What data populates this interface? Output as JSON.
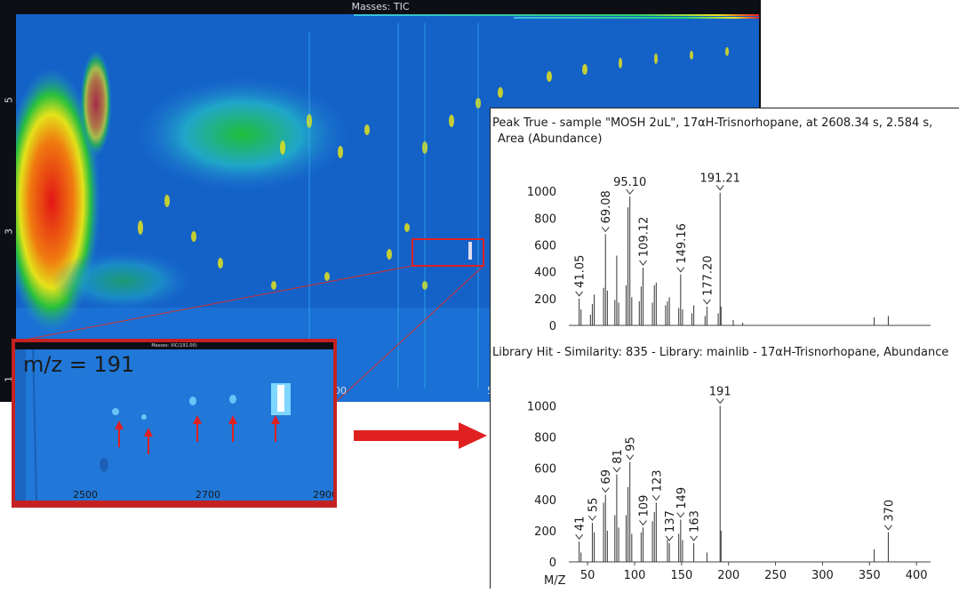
{
  "tic": {
    "title": "Masses: TIC",
    "y_ticks": [
      "5",
      "3",
      "1"
    ],
    "x_ticks": [
      "00",
      "5"
    ]
  },
  "eic": {
    "title": "m/z = 191",
    "header": "Masses: XIC(191.00)",
    "x_ticks": [
      "2500",
      "2700",
      "2900"
    ],
    "arrow_count": 5
  },
  "chart_data": [
    {
      "type": "bar",
      "title": "Peak True - sample \"MOSH 2uL\", 17αH-Trisnorhopane, at 2608.34 s, 2.584 s,",
      "subtitle": "Area (Abundance)",
      "xlim": [
        30,
        415
      ],
      "ylim": [
        0,
        1100
      ],
      "y_ticks": [
        "0",
        "200",
        "400",
        "600",
        "800",
        "1000"
      ],
      "x": [
        41,
        43,
        53,
        55,
        57,
        67,
        69,
        71,
        79,
        81,
        83,
        91,
        93,
        95,
        97,
        105,
        107,
        109,
        119,
        121,
        123,
        133,
        135,
        137,
        147,
        149,
        151,
        161,
        163,
        175,
        177,
        189,
        191,
        192,
        205,
        215,
        355,
        370
      ],
      "values": [
        200,
        120,
        80,
        160,
        230,
        280,
        680,
        260,
        190,
        520,
        170,
        300,
        880,
        960,
        210,
        180,
        290,
        430,
        170,
        300,
        320,
        150,
        180,
        210,
        130,
        380,
        120,
        90,
        150,
        70,
        140,
        90,
        990,
        140,
        40,
        20,
        60,
        70
      ],
      "labels": [
        {
          "x": 41,
          "y": 200,
          "text": "41.05"
        },
        {
          "x": 69,
          "y": 680,
          "text": "69.08"
        },
        {
          "x": 95,
          "y": 960,
          "text": "95.10"
        },
        {
          "x": 109,
          "y": 430,
          "text": "109.12"
        },
        {
          "x": 149,
          "y": 380,
          "text": "149.16"
        },
        {
          "x": 177,
          "y": 140,
          "text": "177.20"
        },
        {
          "x": 191,
          "y": 990,
          "text": "191.21"
        }
      ]
    },
    {
      "type": "bar",
      "title": "Library Hit - Similarity: 835 - Library: mainlib - 17αH-Trisnorhopane, Abundance",
      "xlabel": "M/Z",
      "xlim": [
        30,
        415
      ],
      "ylim": [
        0,
        1100
      ],
      "y_ticks": [
        "0",
        "200",
        "400",
        "600",
        "800",
        "1000"
      ],
      "x_ticks": [
        "50",
        "100",
        "150",
        "200",
        "250",
        "300",
        "350",
        "400"
      ],
      "x_tick_values": [
        50,
        100,
        150,
        200,
        250,
        300,
        350,
        400
      ],
      "x": [
        41,
        43,
        55,
        57,
        67,
        69,
        71,
        79,
        81,
        83,
        91,
        93,
        95,
        97,
        107,
        109,
        119,
        121,
        123,
        135,
        137,
        147,
        149,
        151,
        163,
        177,
        191,
        192,
        355,
        370
      ],
      "values": [
        130,
        60,
        250,
        190,
        380,
        430,
        200,
        300,
        560,
        220,
        300,
        480,
        640,
        180,
        190,
        220,
        260,
        320,
        380,
        140,
        120,
        180,
        270,
        140,
        120,
        60,
        1000,
        200,
        80,
        190
      ],
      "labels": [
        {
          "x": 41,
          "y": 130,
          "text": "41"
        },
        {
          "x": 55,
          "y": 250,
          "text": "55"
        },
        {
          "x": 69,
          "y": 430,
          "text": "69"
        },
        {
          "x": 81,
          "y": 560,
          "text": "81"
        },
        {
          "x": 95,
          "y": 640,
          "text": "95"
        },
        {
          "x": 109,
          "y": 220,
          "text": "109"
        },
        {
          "x": 123,
          "y": 380,
          "text": "123"
        },
        {
          "x": 137,
          "y": 120,
          "text": "137"
        },
        {
          "x": 149,
          "y": 270,
          "text": "149"
        },
        {
          "x": 163,
          "y": 120,
          "text": "163"
        },
        {
          "x": 191,
          "y": 1000,
          "text": "191"
        },
        {
          "x": 370,
          "y": 190,
          "text": "370"
        }
      ]
    }
  ]
}
